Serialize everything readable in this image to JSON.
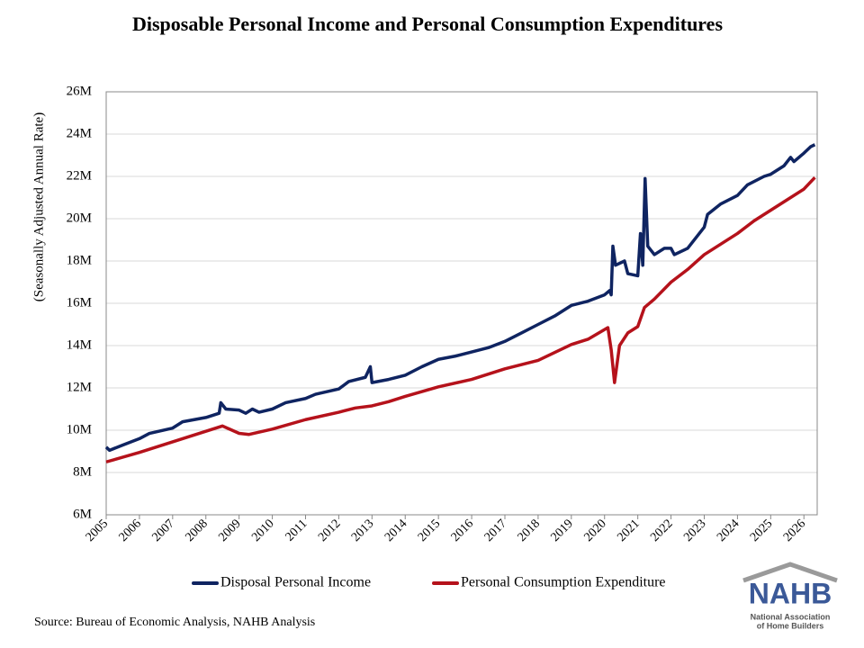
{
  "chart_data": {
    "type": "line",
    "title": "Disposable Personal Income and Personal Consumption Expenditures",
    "y_label": "(Seasonally Adjusted Annual Rate)",
    "xlim": [
      2005,
      2026.4
    ],
    "xticks": [
      2005,
      2006,
      2007,
      2008,
      2009,
      2010,
      2011,
      2012,
      2013,
      2014,
      2015,
      2016,
      2017,
      2018,
      2019,
      2020,
      2021,
      2022,
      2023,
      2024,
      2025,
      2026
    ],
    "ylim": [
      6,
      26
    ],
    "yticks": [
      {
        "value": 6,
        "label": "6M"
      },
      {
        "value": 8,
        "label": "8M"
      },
      {
        "value": 10,
        "label": "10M"
      },
      {
        "value": 12,
        "label": "12M"
      },
      {
        "value": 14,
        "label": "14M"
      },
      {
        "value": 16,
        "label": "16M"
      },
      {
        "value": 18,
        "label": "18M"
      },
      {
        "value": 20,
        "label": "20M"
      },
      {
        "value": 22,
        "label": "22M"
      },
      {
        "value": 24,
        "label": "24M"
      },
      {
        "value": 26,
        "label": "26M"
      }
    ],
    "grid": true,
    "series": [
      {
        "name": "Disposal Personal Income",
        "color": "#0f2461",
        "x": [
          2005.0,
          2005.1,
          2005.5,
          2006.0,
          2006.3,
          2007.0,
          2007.3,
          2008.0,
          2008.4,
          2008.45,
          2008.6,
          2009.0,
          2009.2,
          2009.4,
          2009.6,
          2010.0,
          2010.4,
          2011.0,
          2011.3,
          2012.0,
          2012.3,
          2012.8,
          2012.95,
          2013.0,
          2013.5,
          2014.0,
          2014.5,
          2015.0,
          2015.5,
          2016.0,
          2016.5,
          2017.0,
          2017.5,
          2018.0,
          2018.5,
          2019.0,
          2019.5,
          2020.0,
          2020.15,
          2020.2,
          2020.25,
          2020.33,
          2020.6,
          2020.7,
          2021.0,
          2021.08,
          2021.15,
          2021.22,
          2021.3,
          2021.5,
          2021.8,
          2022.0,
          2022.1,
          2022.5,
          2023.0,
          2023.1,
          2023.5,
          2024.0,
          2024.3,
          2024.8,
          2025.0,
          2025.4,
          2025.6,
          2025.7,
          2026.0,
          2026.2,
          2026.33
        ],
        "values": [
          9.2,
          9.05,
          9.3,
          9.6,
          9.85,
          10.1,
          10.4,
          10.6,
          10.8,
          11.3,
          11.0,
          10.95,
          10.8,
          11.0,
          10.85,
          11.0,
          11.3,
          11.5,
          11.7,
          11.95,
          12.3,
          12.5,
          13.0,
          12.25,
          12.4,
          12.6,
          13.0,
          13.35,
          13.5,
          13.7,
          13.9,
          14.2,
          14.6,
          15.0,
          15.4,
          15.9,
          16.1,
          16.4,
          16.6,
          16.4,
          18.7,
          17.8,
          18.0,
          17.4,
          17.3,
          19.3,
          17.8,
          21.9,
          18.7,
          18.3,
          18.6,
          18.6,
          18.3,
          18.6,
          19.6,
          20.2,
          20.7,
          21.1,
          21.6,
          22.0,
          22.1,
          22.5,
          22.9,
          22.7,
          23.1,
          23.4,
          23.5
        ]
      },
      {
        "name": "Personal Consumption Expenditure",
        "color": "#b5121b",
        "x": [
          2005.0,
          2006.0,
          2007.0,
          2008.0,
          2008.5,
          2009.0,
          2009.3,
          2010.0,
          2011.0,
          2012.0,
          2012.5,
          2013.0,
          2013.5,
          2014.0,
          2015.0,
          2016.0,
          2017.0,
          2018.0,
          2019.0,
          2019.5,
          2020.1,
          2020.2,
          2020.3,
          2020.45,
          2020.7,
          2021.0,
          2021.2,
          2021.5,
          2022.0,
          2022.5,
          2023.0,
          2023.5,
          2024.0,
          2024.5,
          2025.0,
          2025.5,
          2026.0,
          2026.33
        ],
        "values": [
          8.5,
          8.95,
          9.45,
          9.95,
          10.2,
          9.85,
          9.8,
          10.05,
          10.5,
          10.85,
          11.05,
          11.15,
          11.35,
          11.6,
          12.05,
          12.4,
          12.9,
          13.3,
          14.05,
          14.3,
          14.85,
          13.8,
          12.25,
          14.0,
          14.6,
          14.9,
          15.8,
          16.2,
          17.0,
          17.6,
          18.3,
          18.8,
          19.3,
          19.9,
          20.4,
          20.9,
          21.4,
          21.95
        ]
      }
    ]
  },
  "source": "Source: Bureau of Economic Analysis, NAHB Analysis",
  "logo": {
    "text": "NAHB",
    "lines": [
      "National Association",
      "of Home Builders"
    ]
  }
}
